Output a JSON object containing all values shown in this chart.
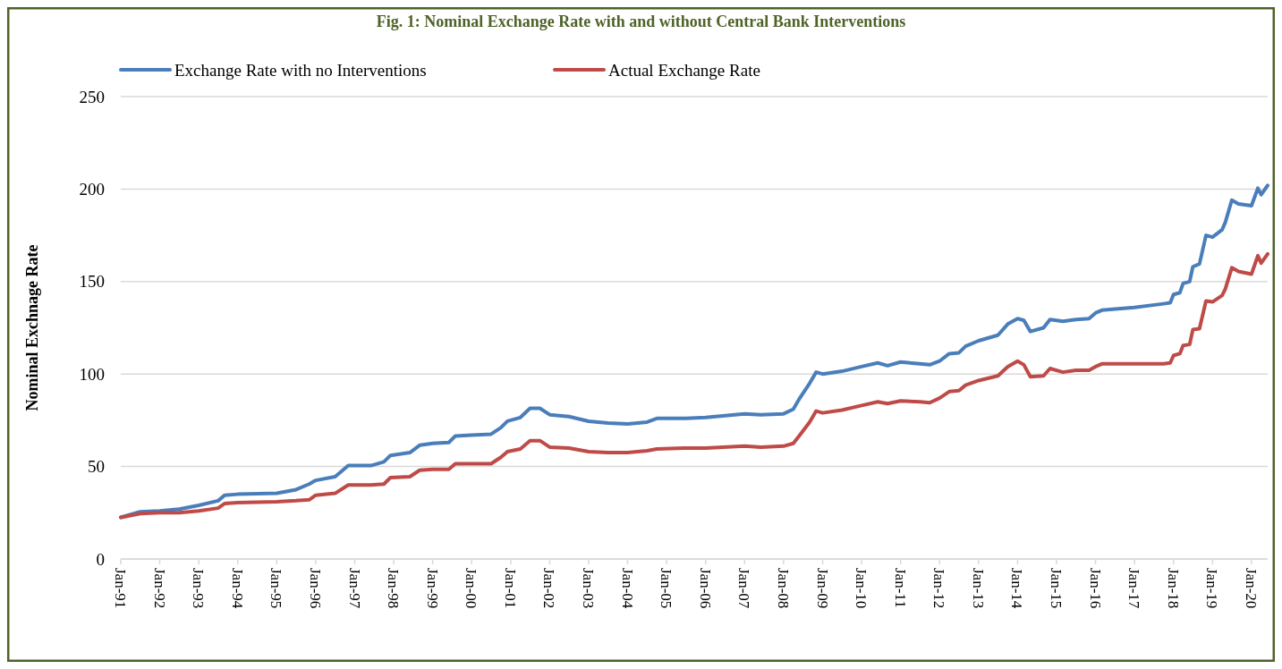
{
  "chart_data": {
    "type": "line",
    "title": "Fig. 1: Nominal Exchange Rate with and without Central Bank Interventions",
    "ylabel": "Nominal Exchnage Rate",
    "x": [
      "1991-01",
      "1991-07",
      "1992-01",
      "1992-07",
      "1993-01",
      "1993-07",
      "1993-09",
      "1994-01",
      "1995-01",
      "1995-07",
      "1995-11",
      "1996-01",
      "1996-07",
      "1996-11",
      "1997-06",
      "1997-10",
      "1997-12",
      "1998-06",
      "1998-09",
      "1999-01",
      "1999-06",
      "1999-08",
      "2000-01",
      "2000-07",
      "2000-10",
      "2000-12",
      "2001-04",
      "2001-07",
      "2001-10",
      "2002-01",
      "2002-07",
      "2003-01",
      "2003-07",
      "2004-01",
      "2004-07",
      "2004-10",
      "2005-07",
      "2006-01",
      "2007-01",
      "2007-06",
      "2008-01",
      "2008-04",
      "2008-06",
      "2008-09",
      "2008-11",
      "2009-01",
      "2009-07",
      "2010-01",
      "2010-06",
      "2010-09",
      "2011-01",
      "2011-07",
      "2011-10",
      "2012-01",
      "2012-04",
      "2012-07",
      "2012-09",
      "2013-01",
      "2013-07",
      "2013-10",
      "2014-01",
      "2014-03",
      "2014-05",
      "2014-09",
      "2014-11",
      "2015-03",
      "2015-07",
      "2015-11",
      "2016-01",
      "2016-03",
      "2017-01",
      "2017-10",
      "2017-12",
      "2018-01",
      "2018-03",
      "2018-04",
      "2018-06",
      "2018-07",
      "2018-09",
      "2018-11",
      "2019-01",
      "2019-04",
      "2019-05",
      "2019-07",
      "2019-09",
      "2020-01",
      "2020-03",
      "2020-04",
      "2020-06"
    ],
    "series": [
      {
        "name": "Exchange Rate with no Interventions",
        "color": "#4a7ebb",
        "values": [
          22.5,
          25.5,
          26,
          27,
          29,
          31.5,
          34.5,
          35,
          35.5,
          37.5,
          40.5,
          42.5,
          44.5,
          50.5,
          50.5,
          52.5,
          56,
          57.5,
          61.5,
          62.5,
          63,
          66.5,
          67,
          67.5,
          71,
          74.5,
          76.5,
          81.5,
          81.5,
          78,
          77,
          74.5,
          73.5,
          73,
          74,
          76,
          76,
          76.5,
          78.5,
          78,
          78.5,
          81,
          87,
          95,
          101,
          100,
          101.5,
          104,
          106,
          104.5,
          106.5,
          105.5,
          105,
          107,
          111,
          111.5,
          115,
          118,
          121,
          127,
          130,
          129,
          123,
          125,
          129.5,
          128.5,
          129.5,
          130,
          133,
          134.5,
          136,
          138,
          138.5,
          143,
          144,
          149,
          150,
          158,
          159.5,
          175,
          174,
          178,
          182,
          194,
          192,
          191,
          200.5,
          197,
          202
        ]
      },
      {
        "name": "Actual Exchange Rate",
        "color": "#be4b48",
        "values": [
          22.5,
          24.5,
          25,
          25,
          26,
          27.5,
          30,
          30.5,
          31,
          31.5,
          32,
          34.5,
          35.5,
          40,
          40,
          40.5,
          44,
          44.5,
          48,
          48.5,
          48.5,
          51.5,
          51.5,
          51.5,
          55,
          58,
          59.5,
          64,
          64,
          60.5,
          60,
          58,
          57.5,
          57.5,
          58.5,
          59.5,
          60,
          60,
          61,
          60.5,
          61,
          62.5,
          67,
          74,
          80,
          79,
          80.5,
          83,
          85,
          84,
          85.5,
          85,
          84.5,
          87,
          90.5,
          91,
          94,
          96.5,
          99,
          104,
          107,
          105,
          98.5,
          99,
          103,
          101,
          102,
          102,
          104,
          105.5,
          105.5,
          105.5,
          106,
          110,
          111,
          115.5,
          116,
          124,
          124.5,
          139.5,
          139,
          142.5,
          146,
          157.5,
          155.5,
          154,
          164,
          160,
          165
        ]
      }
    ],
    "xlim": [
      "1991-01",
      "2020-06"
    ],
    "xticks": [
      {
        "value": "1991-01",
        "label": "Jan-91"
      },
      {
        "value": "1992-01",
        "label": "Jan-92"
      },
      {
        "value": "1993-01",
        "label": "Jan-93"
      },
      {
        "value": "1994-01",
        "label": "Jan-94"
      },
      {
        "value": "1995-01",
        "label": "Jan-95"
      },
      {
        "value": "1996-01",
        "label": "Jan-96"
      },
      {
        "value": "1997-01",
        "label": "Jan-97"
      },
      {
        "value": "1998-01",
        "label": "Jan-98"
      },
      {
        "value": "1999-01",
        "label": "Jan-99"
      },
      {
        "value": "2000-01",
        "label": "Jan-00"
      },
      {
        "value": "2001-01",
        "label": "Jan-01"
      },
      {
        "value": "2002-01",
        "label": "Jan-02"
      },
      {
        "value": "2003-01",
        "label": "Jan-03"
      },
      {
        "value": "2004-01",
        "label": "Jan-04"
      },
      {
        "value": "2005-01",
        "label": "Jan-05"
      },
      {
        "value": "2006-01",
        "label": "Jan-06"
      },
      {
        "value": "2007-01",
        "label": "Jan-07"
      },
      {
        "value": "2008-01",
        "label": "Jan-08"
      },
      {
        "value": "2009-01",
        "label": "Jan-09"
      },
      {
        "value": "2010-01",
        "label": "Jan-10"
      },
      {
        "value": "2011-01",
        "label": "Jan-11"
      },
      {
        "value": "2012-01",
        "label": "Jan-12"
      },
      {
        "value": "2013-01",
        "label": "Jan-13"
      },
      {
        "value": "2014-01",
        "label": "Jan-14"
      },
      {
        "value": "2015-01",
        "label": "Jan-15"
      },
      {
        "value": "2016-01",
        "label": "Jan-16"
      },
      {
        "value": "2017-01",
        "label": "Jan-17"
      },
      {
        "value": "2018-01",
        "label": "Jan-18"
      },
      {
        "value": "2019-01",
        "label": "Jan-19"
      },
      {
        "value": "2020-01",
        "label": "Jan-20"
      }
    ],
    "ylim": [
      0,
      250
    ],
    "yticks": [
      0,
      50,
      100,
      150,
      200,
      250
    ],
    "grid": "y",
    "legend": "top",
    "marker": "none",
    "line_style": "solid"
  }
}
